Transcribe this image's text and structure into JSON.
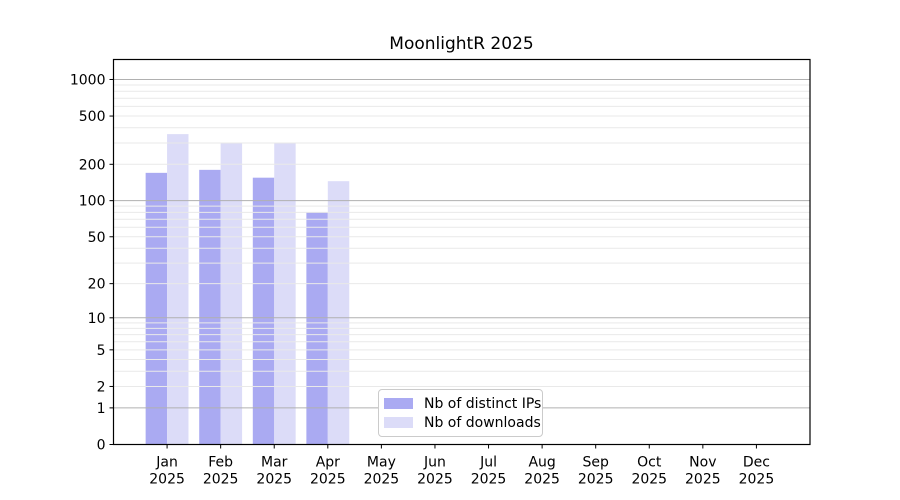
{
  "chart_data": {
    "type": "bar",
    "title": "MoonlightR 2025",
    "categories": [
      "Jan",
      "Feb",
      "Mar",
      "Apr",
      "May",
      "Jun",
      "Jul",
      "Aug",
      "Sep",
      "Oct",
      "Nov",
      "Dec"
    ],
    "year_label": "2025",
    "series": [
      {
        "name": "Nb of distinct IPs",
        "color": "#aaaaf2",
        "values": [
          170,
          180,
          155,
          80,
          null,
          null,
          null,
          null,
          null,
          null,
          null,
          null
        ]
      },
      {
        "name": "Nb of downloads",
        "color": "#dcdcf8",
        "values": [
          355,
          300,
          300,
          145,
          null,
          null,
          null,
          null,
          null,
          null,
          null,
          null
        ]
      }
    ],
    "y_scale": "log1p",
    "y_max": 1460,
    "y_ticks": [
      0,
      1,
      2,
      5,
      10,
      20,
      50,
      100,
      200,
      500,
      1000
    ],
    "grid_major": [
      1,
      10,
      100,
      1000
    ],
    "grid_minor": [
      2,
      3,
      4,
      5,
      6,
      7,
      8,
      9,
      20,
      30,
      40,
      50,
      60,
      70,
      80,
      90,
      200,
      300,
      400,
      500,
      600,
      700,
      800,
      900
    ],
    "bar_width_frac": 0.4,
    "legend_position": "lower-center",
    "grid_on": true,
    "colors": {
      "major_grid": "#b0b0b0",
      "minor_grid": "#e9e9e9",
      "axis": "#000000",
      "background": "#ffffff"
    }
  }
}
